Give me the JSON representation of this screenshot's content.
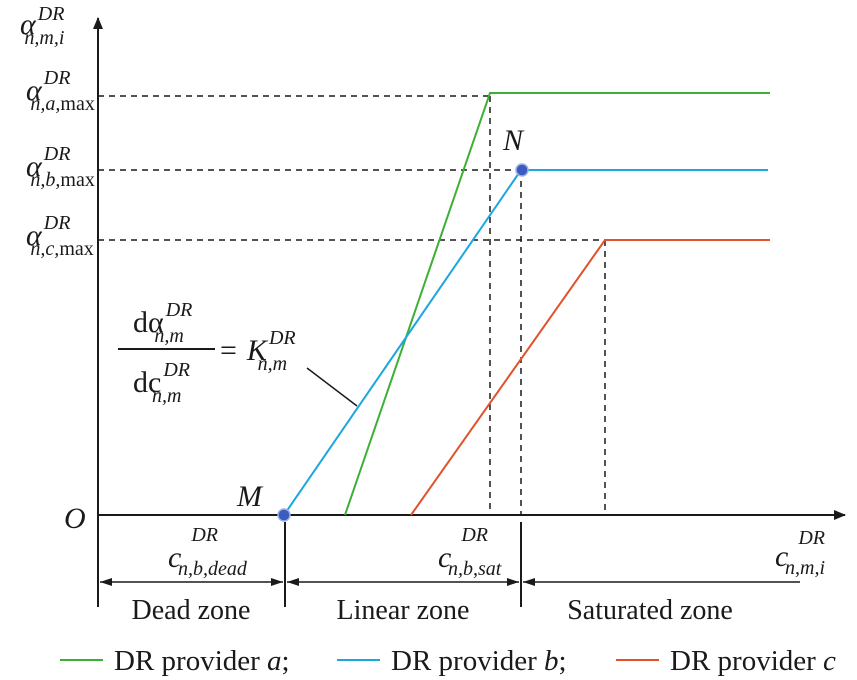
{
  "colors": {
    "provider_a": "#3cb034",
    "provider_b": "#1ba7e0",
    "provider_c": "#e0522a",
    "axis": "#1a1a1a",
    "point": "#3b5bbf"
  },
  "axes": {
    "y_label": {
      "base": "α",
      "sup": "DR",
      "sub": "n,m,i"
    },
    "x_label": {
      "base": "c",
      "sup": "DR",
      "sub": "n,m,i"
    },
    "origin": "O"
  },
  "y_ticks": {
    "a": {
      "base": "α",
      "sup": "DR",
      "sub": "n,a,",
      "tail": "max"
    },
    "b": {
      "base": "α",
      "sup": "DR",
      "sub": "n,b,",
      "tail": "max"
    },
    "c": {
      "base": "α",
      "sup": "DR",
      "sub": "n,c,",
      "tail": "max"
    }
  },
  "x_ticks": {
    "dead": {
      "base": "c",
      "sup": "DR",
      "sub": "n,b,dead"
    },
    "sat": {
      "base": "c",
      "sup": "DR",
      "sub": "n,b,sat"
    }
  },
  "points": {
    "M": "M",
    "N": "N"
  },
  "formula": {
    "num_d": "dα",
    "num_sup": "DR",
    "num_sub": "n,m",
    "den_d": "dc",
    "den_sup": "DR",
    "den_sub": "n,m",
    "eq": "=",
    "rhs": "K",
    "rhs_sup": "DR",
    "rhs_sub": "n,m"
  },
  "zones": {
    "dead": "Dead zone",
    "linear": "Linear zone",
    "saturated": "Saturated zone"
  },
  "legend": [
    {
      "label": "DR provider ",
      "var": "a",
      "end": ";"
    },
    {
      "label": "DR provider ",
      "var": "b",
      "end": ";"
    },
    {
      "label": "DR provider ",
      "var": "c",
      "end": ""
    }
  ]
}
